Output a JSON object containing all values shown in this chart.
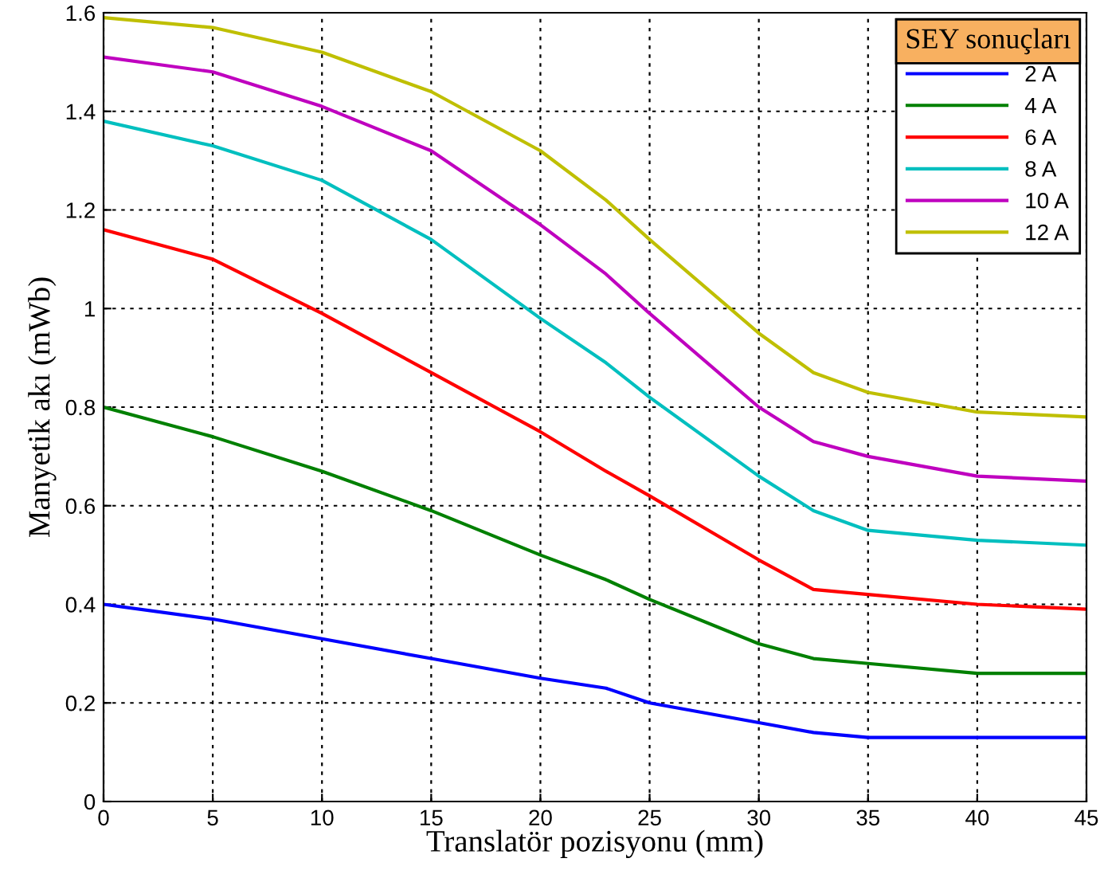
{
  "chart_data": {
    "type": "line",
    "xlabel": "Translatör pozisyonu (mm)",
    "ylabel": "Manyetik akı (mWb)",
    "legend_title": "SEY sonuçları",
    "x": [
      0,
      5,
      10,
      15,
      20,
      23,
      25,
      30,
      32.5,
      35,
      40,
      45
    ],
    "series": [
      {
        "name": "2 A",
        "color": "#0000ff",
        "values": [
          0.4,
          0.37,
          0.33,
          0.29,
          0.25,
          0.23,
          0.2,
          0.16,
          0.14,
          0.13,
          0.13,
          0.13
        ]
      },
      {
        "name": "4 A",
        "color": "#008000",
        "values": [
          0.8,
          0.74,
          0.67,
          0.59,
          0.5,
          0.45,
          0.41,
          0.32,
          0.29,
          0.28,
          0.26,
          0.26
        ]
      },
      {
        "name": "6 A",
        "color": "#ff0000",
        "values": [
          1.16,
          1.1,
          0.99,
          0.87,
          0.75,
          0.67,
          0.62,
          0.49,
          0.43,
          0.42,
          0.4,
          0.39
        ]
      },
      {
        "name": "8 A",
        "color": "#00bfbf",
        "values": [
          1.38,
          1.33,
          1.26,
          1.14,
          0.98,
          0.89,
          0.82,
          0.66,
          0.59,
          0.55,
          0.53,
          0.52
        ]
      },
      {
        "name": "10 A",
        "color": "#bf00bf",
        "values": [
          1.51,
          1.48,
          1.41,
          1.32,
          1.17,
          1.07,
          0.99,
          0.8,
          0.73,
          0.7,
          0.66,
          0.65
        ]
      },
      {
        "name": "12 A",
        "color": "#bfbf00",
        "values": [
          1.59,
          1.57,
          1.52,
          1.44,
          1.32,
          1.22,
          1.14,
          0.95,
          0.87,
          0.83,
          0.79,
          0.78
        ]
      }
    ],
    "xlim": [
      0,
      45
    ],
    "xticks": [
      0,
      5,
      10,
      15,
      20,
      25,
      30,
      35,
      40,
      45
    ],
    "ylim": [
      0,
      1.6
    ],
    "yticks": [
      0,
      0.2,
      0.4,
      0.6,
      0.8,
      1,
      1.2,
      1.4,
      1.6
    ],
    "grid": true,
    "legend": "top right",
    "marker": "none",
    "line_style": "solid"
  }
}
